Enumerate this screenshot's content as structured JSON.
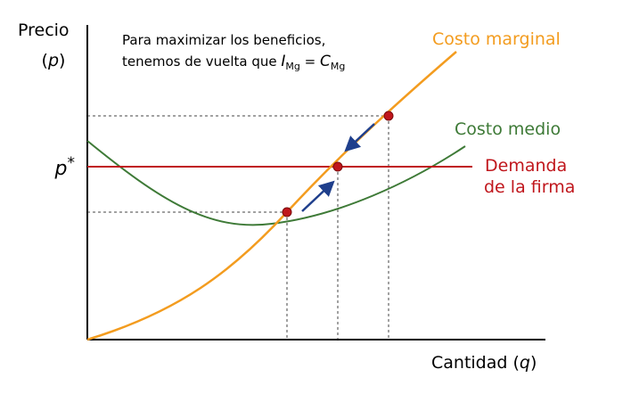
{
  "y_axis": {
    "title": "Precio",
    "symbol_open": "(",
    "symbol": "p",
    "symbol_close": ")"
  },
  "x_axis": {
    "title": "Cantidad",
    "symbol_open": "(",
    "symbol": "q",
    "symbol_close": ")"
  },
  "p_star": {
    "base": "p",
    "sup": "*"
  },
  "note": {
    "line1": "Para maximizar los beneficios,",
    "line2_prefix": "tenemos de vuelta que ",
    "lhs": "I",
    "lhs_sub": "Mg",
    "equals": " = ",
    "rhs": "C",
    "rhs_sub": "Mg"
  },
  "curves": {
    "marginal_cost": {
      "label": "Costo marginal",
      "color": "#f39c1f"
    },
    "average_cost": {
      "label": "Costo medio",
      "color": "#3e7a37"
    },
    "demand": {
      "label_line1": "Demanda",
      "label_line2": "de la firma",
      "color": "#c0161c"
    }
  },
  "colors": {
    "axis": "#000000",
    "points": "#c0161c",
    "arrows": "#1f3f8c",
    "guides": "#444444"
  }
}
